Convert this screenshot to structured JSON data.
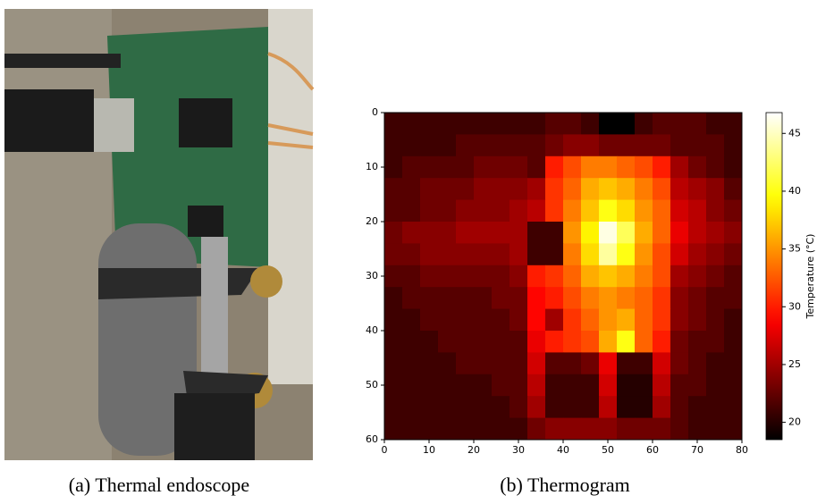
{
  "chart_data": {
    "type": "heatmap",
    "colormap": "hot",
    "xlim": [
      0,
      80
    ],
    "xticks": [
      0,
      10,
      20,
      30,
      40,
      50,
      60,
      70,
      80
    ],
    "ylim": [
      60,
      0
    ],
    "yticks": [
      0,
      10,
      20,
      30,
      40,
      50,
      60
    ],
    "clim": [
      18.5,
      46.8
    ],
    "cticks": [
      20,
      25,
      30,
      35,
      40,
      45
    ],
    "colorbar_label": "Temperature (°C)",
    "z": [
      [
        21,
        21,
        21,
        21,
        21,
        21,
        21,
        21,
        21,
        22,
        22,
        21,
        18,
        18,
        21,
        22,
        22,
        22,
        21,
        21
      ],
      [
        21,
        21,
        21,
        21,
        22,
        22,
        22,
        22,
        22,
        23,
        24,
        24,
        23,
        23,
        23,
        23,
        22,
        22,
        22,
        21
      ],
      [
        21,
        22,
        22,
        22,
        22,
        23,
        23,
        23,
        22,
        30,
        32,
        34,
        34,
        33,
        32,
        30,
        25,
        23,
        22,
        21
      ],
      [
        22,
        22,
        23,
        23,
        23,
        24,
        24,
        24,
        25,
        31,
        33,
        36,
        37,
        36,
        34,
        32,
        26,
        25,
        24,
        22
      ],
      [
        22,
        22,
        23,
        23,
        24,
        24,
        24,
        25,
        26,
        31,
        34,
        37,
        40,
        38,
        35,
        33,
        27,
        26,
        24,
        23
      ],
      [
        23,
        24,
        24,
        24,
        25,
        25,
        25,
        25,
        21,
        21,
        35,
        39,
        46,
        42,
        36,
        33,
        28,
        26,
        25,
        24
      ],
      [
        23,
        23,
        24,
        24,
        24,
        24,
        24,
        25,
        21,
        21,
        34,
        38,
        44,
        40,
        35,
        32,
        27,
        25,
        24,
        23
      ],
      [
        22,
        22,
        23,
        23,
        23,
        23,
        23,
        24,
        30,
        31,
        33,
        36,
        37,
        36,
        34,
        32,
        25,
        24,
        23,
        22
      ],
      [
        21,
        22,
        22,
        22,
        22,
        22,
        23,
        23,
        29,
        30,
        32,
        34,
        35,
        34,
        33,
        31,
        24,
        23,
        22,
        22
      ],
      [
        21,
        21,
        22,
        22,
        22,
        22,
        22,
        23,
        29,
        25,
        31,
        33,
        35,
        36,
        33,
        31,
        24,
        23,
        22,
        21
      ],
      [
        21,
        21,
        21,
        22,
        22,
        22,
        22,
        22,
        28,
        30,
        31,
        32,
        36,
        40,
        33,
        30,
        23,
        22,
        22,
        21
      ],
      [
        21,
        21,
        21,
        21,
        22,
        22,
        22,
        22,
        27,
        22,
        22,
        23,
        28,
        21,
        21,
        27,
        23,
        22,
        21,
        21
      ],
      [
        21,
        21,
        21,
        21,
        21,
        21,
        22,
        22,
        26,
        21,
        21,
        21,
        27,
        20,
        20,
        26,
        22,
        22,
        21,
        21
      ],
      [
        21,
        21,
        21,
        21,
        21,
        21,
        21,
        22,
        25,
        21,
        21,
        21,
        26,
        20,
        20,
        25,
        22,
        21,
        21,
        21
      ],
      [
        21,
        21,
        21,
        21,
        21,
        21,
        21,
        21,
        23,
        24,
        24,
        24,
        24,
        23,
        23,
        23,
        22,
        21,
        21,
        21
      ]
    ]
  },
  "captions": {
    "a": "(a) Thermal endoscope",
    "b": "(b) Thermogram"
  }
}
